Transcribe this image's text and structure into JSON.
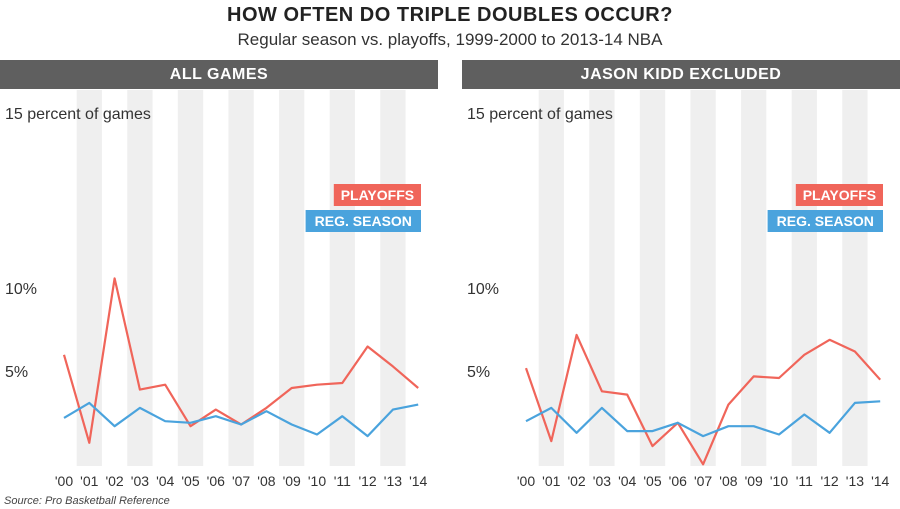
{
  "title": "HOW OFTEN DO TRIPLE DOUBLES OCCUR?",
  "subtitle": "Regular season vs. playoffs, 1999-2000 to 2013-14 NBA",
  "source": "Source: Pro Basketball Reference",
  "colors": {
    "playoffs": "#f0655a",
    "regular_season": "#4aa3dd",
    "header_bg": "#5f5f5f",
    "stripe": "#efefef"
  },
  "chart_data": [
    {
      "type": "line",
      "panel_title": "ALL GAMES",
      "categories": [
        "'00",
        "'01",
        "'02",
        "'03",
        "'04",
        "'05",
        "'06",
        "'07",
        "'08",
        "'09",
        "'10",
        "'11",
        "'12",
        "'13",
        "'14"
      ],
      "y_ticks": [
        {
          "value": 5,
          "label": "5%"
        },
        {
          "value": 10,
          "label": "10%"
        },
        {
          "value": 15,
          "label": "15 percent of games"
        }
      ],
      "ylim": [
        0,
        15
      ],
      "series": [
        {
          "name": "PLAYOFFS",
          "color": "#f0655a",
          "values": [
            6.7,
            1.4,
            11.3,
            4.6,
            4.9,
            2.4,
            3.4,
            2.5,
            3.5,
            4.7,
            4.9,
            5.0,
            7.2,
            6.0,
            4.7
          ]
        },
        {
          "name": "REG. SEASON",
          "color": "#4aa3dd",
          "values": [
            2.9,
            3.8,
            2.4,
            3.5,
            2.7,
            2.6,
            3.0,
            2.5,
            3.3,
            2.5,
            1.9,
            3.0,
            1.8,
            3.4,
            3.7
          ]
        }
      ],
      "legend": "right"
    },
    {
      "type": "line",
      "panel_title": "JASON KIDD EXCLUDED",
      "categories": [
        "'00",
        "'01",
        "'02",
        "'03",
        "'04",
        "'05",
        "'06",
        "'07",
        "'08",
        "'09",
        "'10",
        "'11",
        "'12",
        "'13",
        "'14"
      ],
      "y_ticks": [
        {
          "value": 5,
          "label": "5%"
        },
        {
          "value": 10,
          "label": "10%"
        },
        {
          "value": 15,
          "label": "15 percent of games"
        }
      ],
      "ylim": [
        0,
        15
      ],
      "series": [
        {
          "name": "PLAYOFFS",
          "color": "#f0655a",
          "values": [
            5.9,
            1.5,
            7.9,
            4.5,
            4.3,
            1.2,
            2.6,
            0.1,
            3.7,
            5.4,
            5.3,
            6.7,
            7.6,
            6.9,
            5.2
          ]
        },
        {
          "name": "REG. SEASON",
          "color": "#4aa3dd",
          "values": [
            2.7,
            3.5,
            2.0,
            3.5,
            2.1,
            2.1,
            2.6,
            1.8,
            2.4,
            2.4,
            1.9,
            3.1,
            2.0,
            3.8,
            3.9
          ]
        }
      ],
      "legend": "right"
    }
  ]
}
